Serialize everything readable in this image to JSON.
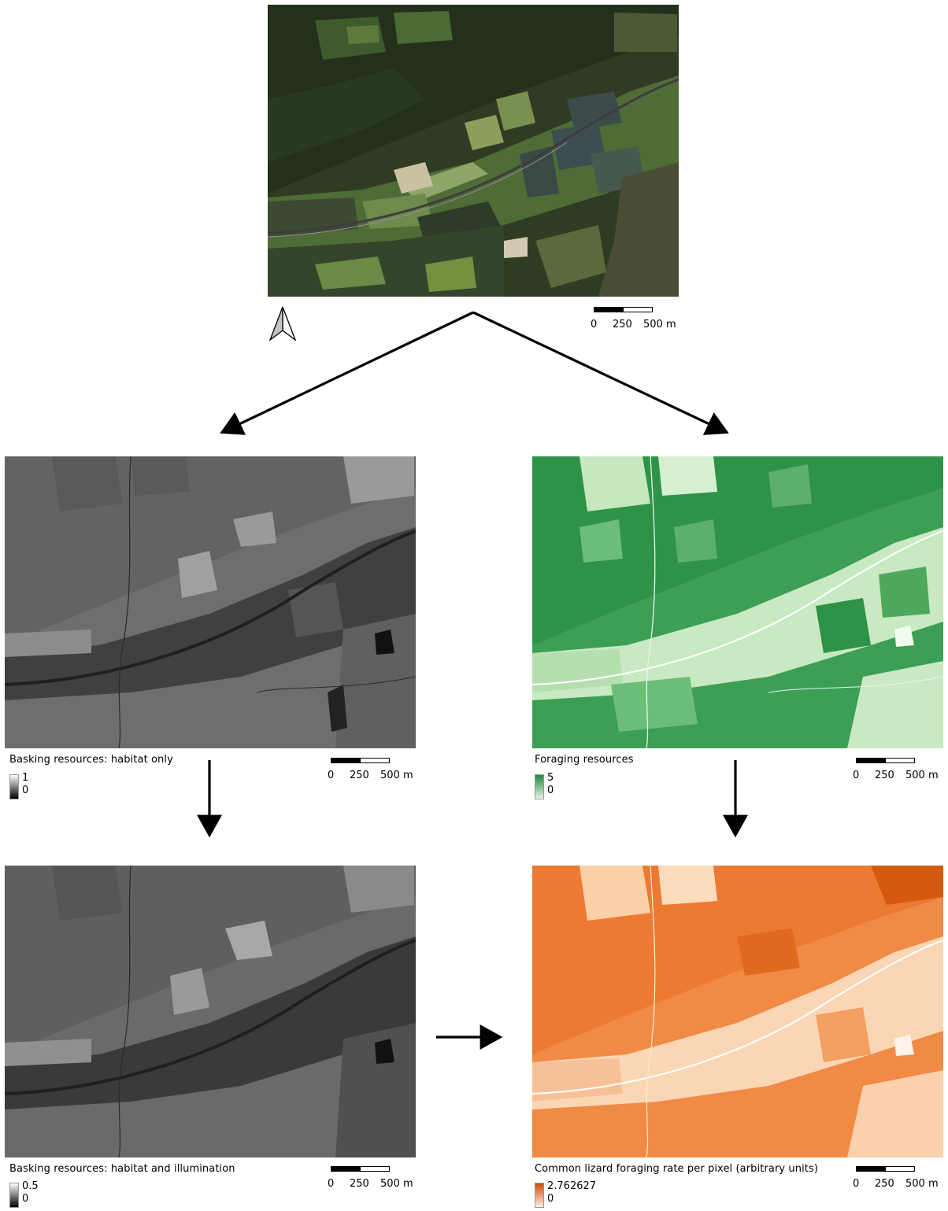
{
  "top_map": {
    "scale": {
      "zero": "0",
      "mid": "250",
      "end": "500 m"
    }
  },
  "panels": {
    "basking_habitat": {
      "title": "Basking resources: habitat only",
      "legend": {
        "high": "1",
        "low": "0",
        "colors": [
          "#ffffff",
          "#000000"
        ]
      },
      "scale": {
        "zero": "0",
        "mid": "250",
        "end": "500 m"
      }
    },
    "foraging": {
      "title": "Foraging resources",
      "legend": {
        "high": "5",
        "low": "0",
        "colors": [
          "#1e8a3f",
          "#e6f5e1"
        ]
      },
      "scale": {
        "zero": "0",
        "mid": "250",
        "end": "500 m"
      }
    },
    "basking_illum": {
      "title": "Basking resources: habitat and illumination",
      "legend": {
        "high": "0.5",
        "low": "0",
        "colors": [
          "#ffffff",
          "#000000"
        ]
      },
      "scale": {
        "zero": "0",
        "mid": "250",
        "end": "500 m"
      }
    },
    "foraging_rate": {
      "title": "Common lizard foraging rate per pixel (arbitrary units)",
      "legend": {
        "high": "2.762627",
        "low": "0",
        "colors": [
          "#d04a05",
          "#fff0e0"
        ]
      },
      "scale": {
        "zero": "0",
        "mid": "250",
        "end": "500 m"
      }
    }
  }
}
